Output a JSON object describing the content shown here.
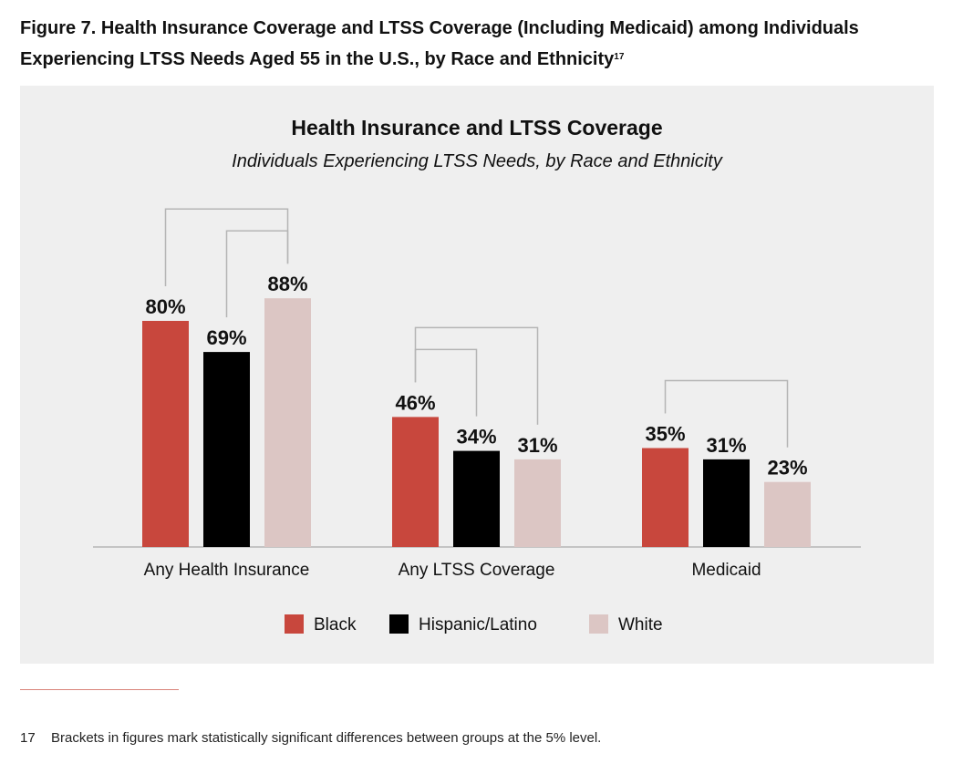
{
  "figure": {
    "caption_line1": "Figure 7. Health Insurance Coverage and LTSS Coverage (Including Medicaid) among Individuals",
    "caption_line2": "Experiencing LTSS Needs Aged 55 in the U.S., by Race and Ethnicity",
    "caption_superscript": "17"
  },
  "footnote": {
    "number": "17",
    "text": "Brackets in figures mark statistically significant differences between groups at the 5% level."
  },
  "colors": {
    "Black": "#c8473d",
    "Hispanic/Latino": "#000000",
    "White": "#dcc6c4",
    "bracket": "#b5b5b5",
    "axis": "#b5b5b5"
  },
  "chart_data": {
    "type": "bar",
    "title": "Health Insurance and LTSS Coverage",
    "subtitle": "Individuals Experiencing LTSS Needs, by Race and Ethnicity",
    "categories": [
      "Any Health Insurance",
      "Any LTSS Coverage",
      "Medicaid"
    ],
    "series": [
      {
        "name": "Black",
        "values": [
          80,
          46,
          35
        ],
        "labels": [
          "80%",
          "46%",
          "35%"
        ]
      },
      {
        "name": "Hispanic/Latino",
        "values": [
          69,
          34,
          31
        ],
        "labels": [
          "69%",
          "34%",
          "31%"
        ]
      },
      {
        "name": "White",
        "values": [
          88,
          31,
          23
        ],
        "labels": [
          "88%",
          "31%",
          "23%"
        ]
      }
    ],
    "ylim": [
      0,
      100
    ],
    "grid": false,
    "legend_position": "bottom",
    "significance_brackets": [
      {
        "category": 0,
        "from": 0,
        "to": 2
      },
      {
        "category": 0,
        "from": 1,
        "to": 2
      },
      {
        "category": 1,
        "from": 0,
        "to": 2
      },
      {
        "category": 1,
        "from": 0,
        "to": 1
      },
      {
        "category": 2,
        "from": 0,
        "to": 2
      }
    ]
  }
}
